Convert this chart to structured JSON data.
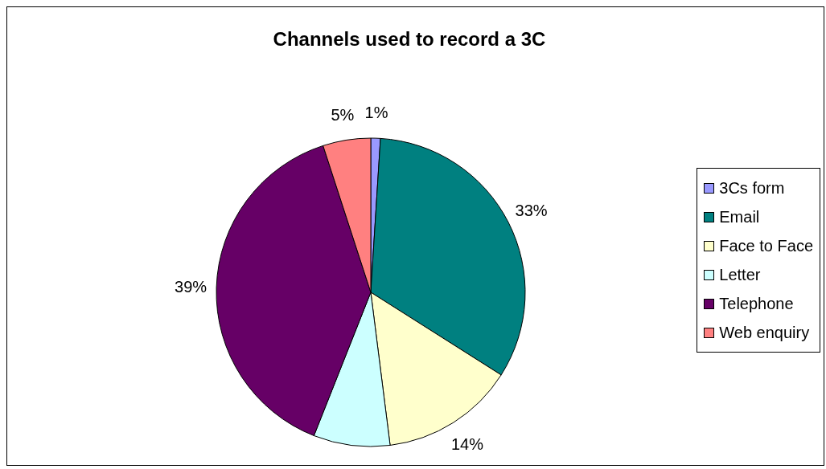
{
  "chart_data": {
    "type": "pie",
    "title": "Channels used to record a 3C",
    "categories": [
      "3Cs form",
      "Email",
      "Face to Face",
      "Letter",
      "Telephone",
      "Web enquiry"
    ],
    "values": [
      1,
      33,
      14,
      8,
      39,
      5
    ],
    "value_labels": [
      "1%",
      "33%",
      "14%",
      null,
      "39%",
      "5%"
    ],
    "colors": [
      "#9999ff",
      "#008080",
      "#ffffcc",
      "#ccffff",
      "#660066",
      "#ff8080"
    ],
    "legend": "right"
  }
}
